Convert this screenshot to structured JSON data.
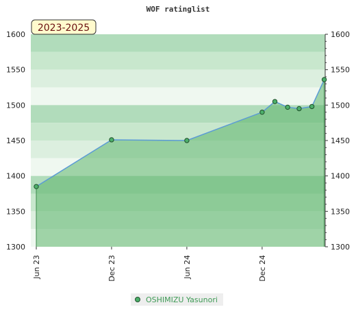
{
  "chart_data": {
    "type": "area",
    "title": "WOF ratinglist",
    "season_label": "2023-2025",
    "x_ticks": [
      "Jun 23",
      "Dec 23",
      "Jun 24",
      "Dec 24"
    ],
    "y_ticks": [
      1300,
      1350,
      1400,
      1450,
      1500,
      1550,
      1600
    ],
    "ylim": [
      1300,
      1600
    ],
    "xlim": [
      "2023-06-01",
      "2025-04-20"
    ],
    "series": [
      {
        "name": "OSHIMIZU Yasunori",
        "points": [
          {
            "x": "2023-06-01",
            "y": 1385
          },
          {
            "x": "2023-12-01",
            "y": 1451
          },
          {
            "x": "2024-06-01",
            "y": 1450
          },
          {
            "x": "2024-12-01",
            "y": 1490
          },
          {
            "x": "2025-01-01",
            "y": 1505
          },
          {
            "x": "2025-02-01",
            "y": 1497
          },
          {
            "x": "2025-03-01",
            "y": 1495
          },
          {
            "x": "2025-04-01",
            "y": 1498
          },
          {
            "x": "2025-05-01",
            "y": 1536
          }
        ]
      }
    ],
    "legend_position": "bottom-center",
    "colors": {
      "line": "#5b9bd5",
      "fill": "#5cb46c",
      "marker": "#4caf6a",
      "marker_edge": "#1f4f2a",
      "season_box": "#fffacd"
    }
  }
}
